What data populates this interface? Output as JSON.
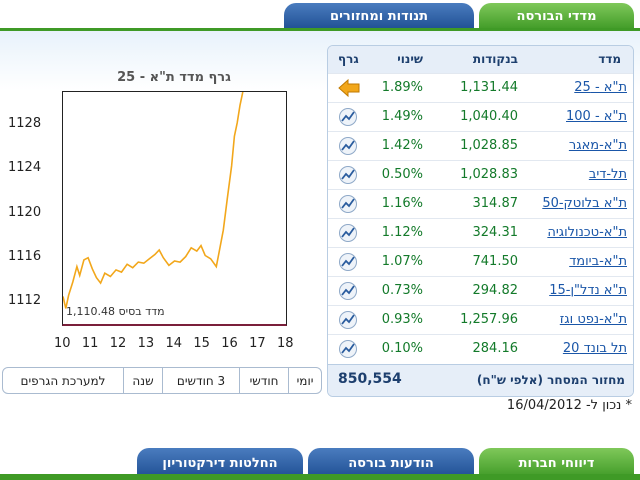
{
  "top_tabs": [
    {
      "label": "מדדי הבורסה",
      "active": true
    },
    {
      "label": "תנודות ומחזורים",
      "active": false
    }
  ],
  "table": {
    "headers": {
      "name": "מדד",
      "points": "בנקודות",
      "change": "שינוי",
      "graph": "גרף"
    },
    "rows": [
      {
        "name": "ת\"א - 25",
        "points": "1,131.44",
        "change": "1.89%",
        "icon": "arrow-left-icon"
      },
      {
        "name": "ת\"א - 100",
        "points": "1,040.40",
        "change": "1.49%",
        "icon": "chart-icon"
      },
      {
        "name": "ת\"א-מאגר",
        "points": "1,028.85",
        "change": "1.42%",
        "icon": "chart-icon"
      },
      {
        "name": "תל-דיב",
        "points": "1,028.83",
        "change": "0.50%",
        "icon": "chart-icon"
      },
      {
        "name": "ת\"א בלוטק-50",
        "points": "314.87",
        "change": "1.16%",
        "icon": "chart-icon"
      },
      {
        "name": "ת\"א-טכנולוגיה",
        "points": "324.31",
        "change": "1.12%",
        "icon": "chart-icon"
      },
      {
        "name": "ת\"א-ביומד",
        "points": "741.50",
        "change": "1.07%",
        "icon": "chart-icon"
      },
      {
        "name": "ת\"א נדל\"ן-15",
        "points": "294.82",
        "change": "0.73%",
        "icon": "chart-icon"
      },
      {
        "name": "ת\"א-נפט וגז",
        "points": "1,257.96",
        "change": "0.93%",
        "icon": "chart-icon"
      },
      {
        "name": "תל בונד 20",
        "points": "284.16",
        "change": "0.10%",
        "icon": "chart-icon"
      }
    ],
    "footer_label": "מחזור המסחר (אלפי ש\"ח)",
    "footer_value": "850,554"
  },
  "chart_data": {
    "type": "line",
    "title": "גרף מדד ת\"א - 25",
    "y_ticks": [
      "1128",
      "1124",
      "1120",
      "1116",
      "1112"
    ],
    "x_ticks": [
      "10",
      "11",
      "12",
      "13",
      "14",
      "15",
      "16",
      "17",
      "18"
    ],
    "ylim": [
      1110,
      1131
    ],
    "xlim": [
      10,
      18
    ],
    "base_label": "1,110.48 מדד בסיס",
    "series": [
      {
        "values": [
          [
            10.0,
            1112.5
          ],
          [
            10.1,
            1111.4
          ],
          [
            10.2,
            1112.6
          ],
          [
            10.35,
            1113.8
          ],
          [
            10.5,
            1115.2
          ],
          [
            10.6,
            1114.4
          ],
          [
            10.75,
            1115.8
          ],
          [
            10.9,
            1116.0
          ],
          [
            11.05,
            1115.0
          ],
          [
            11.2,
            1114.2
          ],
          [
            11.35,
            1113.7
          ],
          [
            11.5,
            1114.6
          ],
          [
            11.7,
            1114.3
          ],
          [
            11.9,
            1114.9
          ],
          [
            12.1,
            1114.7
          ],
          [
            12.3,
            1115.4
          ],
          [
            12.5,
            1115.1
          ],
          [
            12.7,
            1115.6
          ],
          [
            12.9,
            1115.5
          ],
          [
            13.1,
            1115.9
          ],
          [
            13.3,
            1116.3
          ],
          [
            13.45,
            1116.7
          ],
          [
            13.6,
            1116.0
          ],
          [
            13.8,
            1115.3
          ],
          [
            14.0,
            1115.7
          ],
          [
            14.2,
            1115.6
          ],
          [
            14.4,
            1116.1
          ],
          [
            14.6,
            1116.9
          ],
          [
            14.8,
            1116.6
          ],
          [
            14.95,
            1117.1
          ],
          [
            15.1,
            1116.2
          ],
          [
            15.3,
            1115.9
          ],
          [
            15.5,
            1115.2
          ],
          [
            15.6,
            1116.5
          ],
          [
            15.75,
            1118.5
          ],
          [
            15.9,
            1121.5
          ],
          [
            16.05,
            1124.3
          ],
          [
            16.15,
            1127.0
          ],
          [
            16.25,
            1128.2
          ],
          [
            16.35,
            1129.8
          ],
          [
            16.45,
            1131.0
          ]
        ]
      }
    ]
  },
  "period_buttons": [
    {
      "label": "יומי",
      "active": true
    },
    {
      "label": "חודשי",
      "active": false
    },
    {
      "label": "3 חודשים",
      "active": false
    },
    {
      "label": "שנה",
      "active": false
    },
    {
      "label": "למערכת הגרפים",
      "active": false
    }
  ],
  "note": "* נכון ל- 16/04/2012",
  "bottom_tabs": [
    {
      "label": "דיווחי חברות",
      "active": true
    },
    {
      "label": "הודעות בורסה",
      "active": false
    },
    {
      "label": "החלטות דירקטוריון",
      "active": false
    }
  ],
  "colors": {
    "green": "#3f9a26",
    "blue": "#1f4f93",
    "line": "#f2a71b",
    "arrow": "#f2a71b"
  }
}
